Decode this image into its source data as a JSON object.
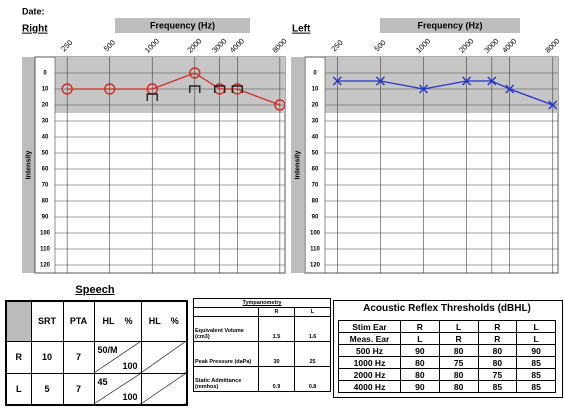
{
  "date_label": "Date:",
  "chart_data": [
    {
      "type": "line",
      "title": "Right",
      "x_label": "Frequency (Hz)",
      "y_label": "Intensity",
      "x": [
        250,
        500,
        1000,
        2000,
        3000,
        4000,
        8000
      ],
      "series": [
        {
          "color": "#d42a2a",
          "marker": "circle",
          "line": true,
          "values": [
            10,
            10,
            10,
            0,
            10,
            10,
            20
          ]
        },
        {
          "color": "#222222",
          "marker": "bracket",
          "line": false,
          "values": [
            null,
            null,
            15,
            10,
            10,
            10,
            null
          ]
        }
      ],
      "xlim": [
        205,
        8700
      ],
      "log_x": true,
      "xticks": [
        250,
        500,
        1000,
        2000,
        3000,
        4000,
        8000
      ],
      "ylim": [
        -10,
        125
      ],
      "y_inverted": true,
      "yticks": [
        0,
        10,
        20,
        30,
        40,
        50,
        60,
        70,
        80,
        90,
        100,
        110,
        120
      ],
      "shaded_range": [
        -10,
        25
      ],
      "grid": true
    },
    {
      "type": "line",
      "title": "Left",
      "x_label": "Frequency (Hz)",
      "y_label": "Intensity",
      "x": [
        250,
        500,
        1000,
        2000,
        3000,
        4000,
        8000
      ],
      "series": [
        {
          "color": "#2233cc",
          "marker": "x",
          "line": true,
          "values": [
            5,
            5,
            10,
            5,
            5,
            10,
            20
          ]
        }
      ],
      "xlim": [
        205,
        8700
      ],
      "log_x": true,
      "xticks": [
        250,
        500,
        1000,
        2000,
        3000,
        4000,
        8000
      ],
      "ylim": [
        -10,
        125
      ],
      "y_inverted": true,
      "yticks": [
        0,
        10,
        20,
        30,
        40,
        50,
        60,
        70,
        80,
        90,
        100,
        110,
        120
      ],
      "shaded_range": [
        -10,
        25
      ],
      "grid": true
    }
  ],
  "speech": {
    "title": "Speech",
    "header": [
      "SRT",
      "PTA",
      "HL",
      "%",
      "HL",
      "%"
    ],
    "rows": [
      [
        "R",
        10,
        7,
        "50/M",
        100
      ],
      [
        "L",
        5,
        7,
        45,
        100
      ]
    ]
  },
  "tympanometry": {
    "title": "Tympanometry",
    "header": [
      "R",
      "L"
    ],
    "rows": [
      [
        "Equivalent Volume (cm3)",
        1.5,
        1.6
      ],
      [
        "Peak Pressure (daPa)",
        30,
        25
      ],
      [
        "Static Admittance (mmhos)",
        0.9,
        0.8
      ]
    ]
  },
  "reflex": {
    "title": "Acoustic Reflex Thresholds (dBHL)",
    "rows": [
      [
        "Stim Ear",
        "R",
        "L",
        "R",
        "L"
      ],
      [
        "Meas. Ear",
        "L",
        "R",
        "R",
        "L"
      ],
      [
        "500 Hz",
        90,
        80,
        80,
        90
      ],
      [
        "1000 Hz",
        80,
        75,
        80,
        85
      ],
      [
        "2000 Hz",
        80,
        80,
        75,
        85
      ],
      [
        "4000 Hz",
        90,
        80,
        85,
        85
      ]
    ]
  }
}
